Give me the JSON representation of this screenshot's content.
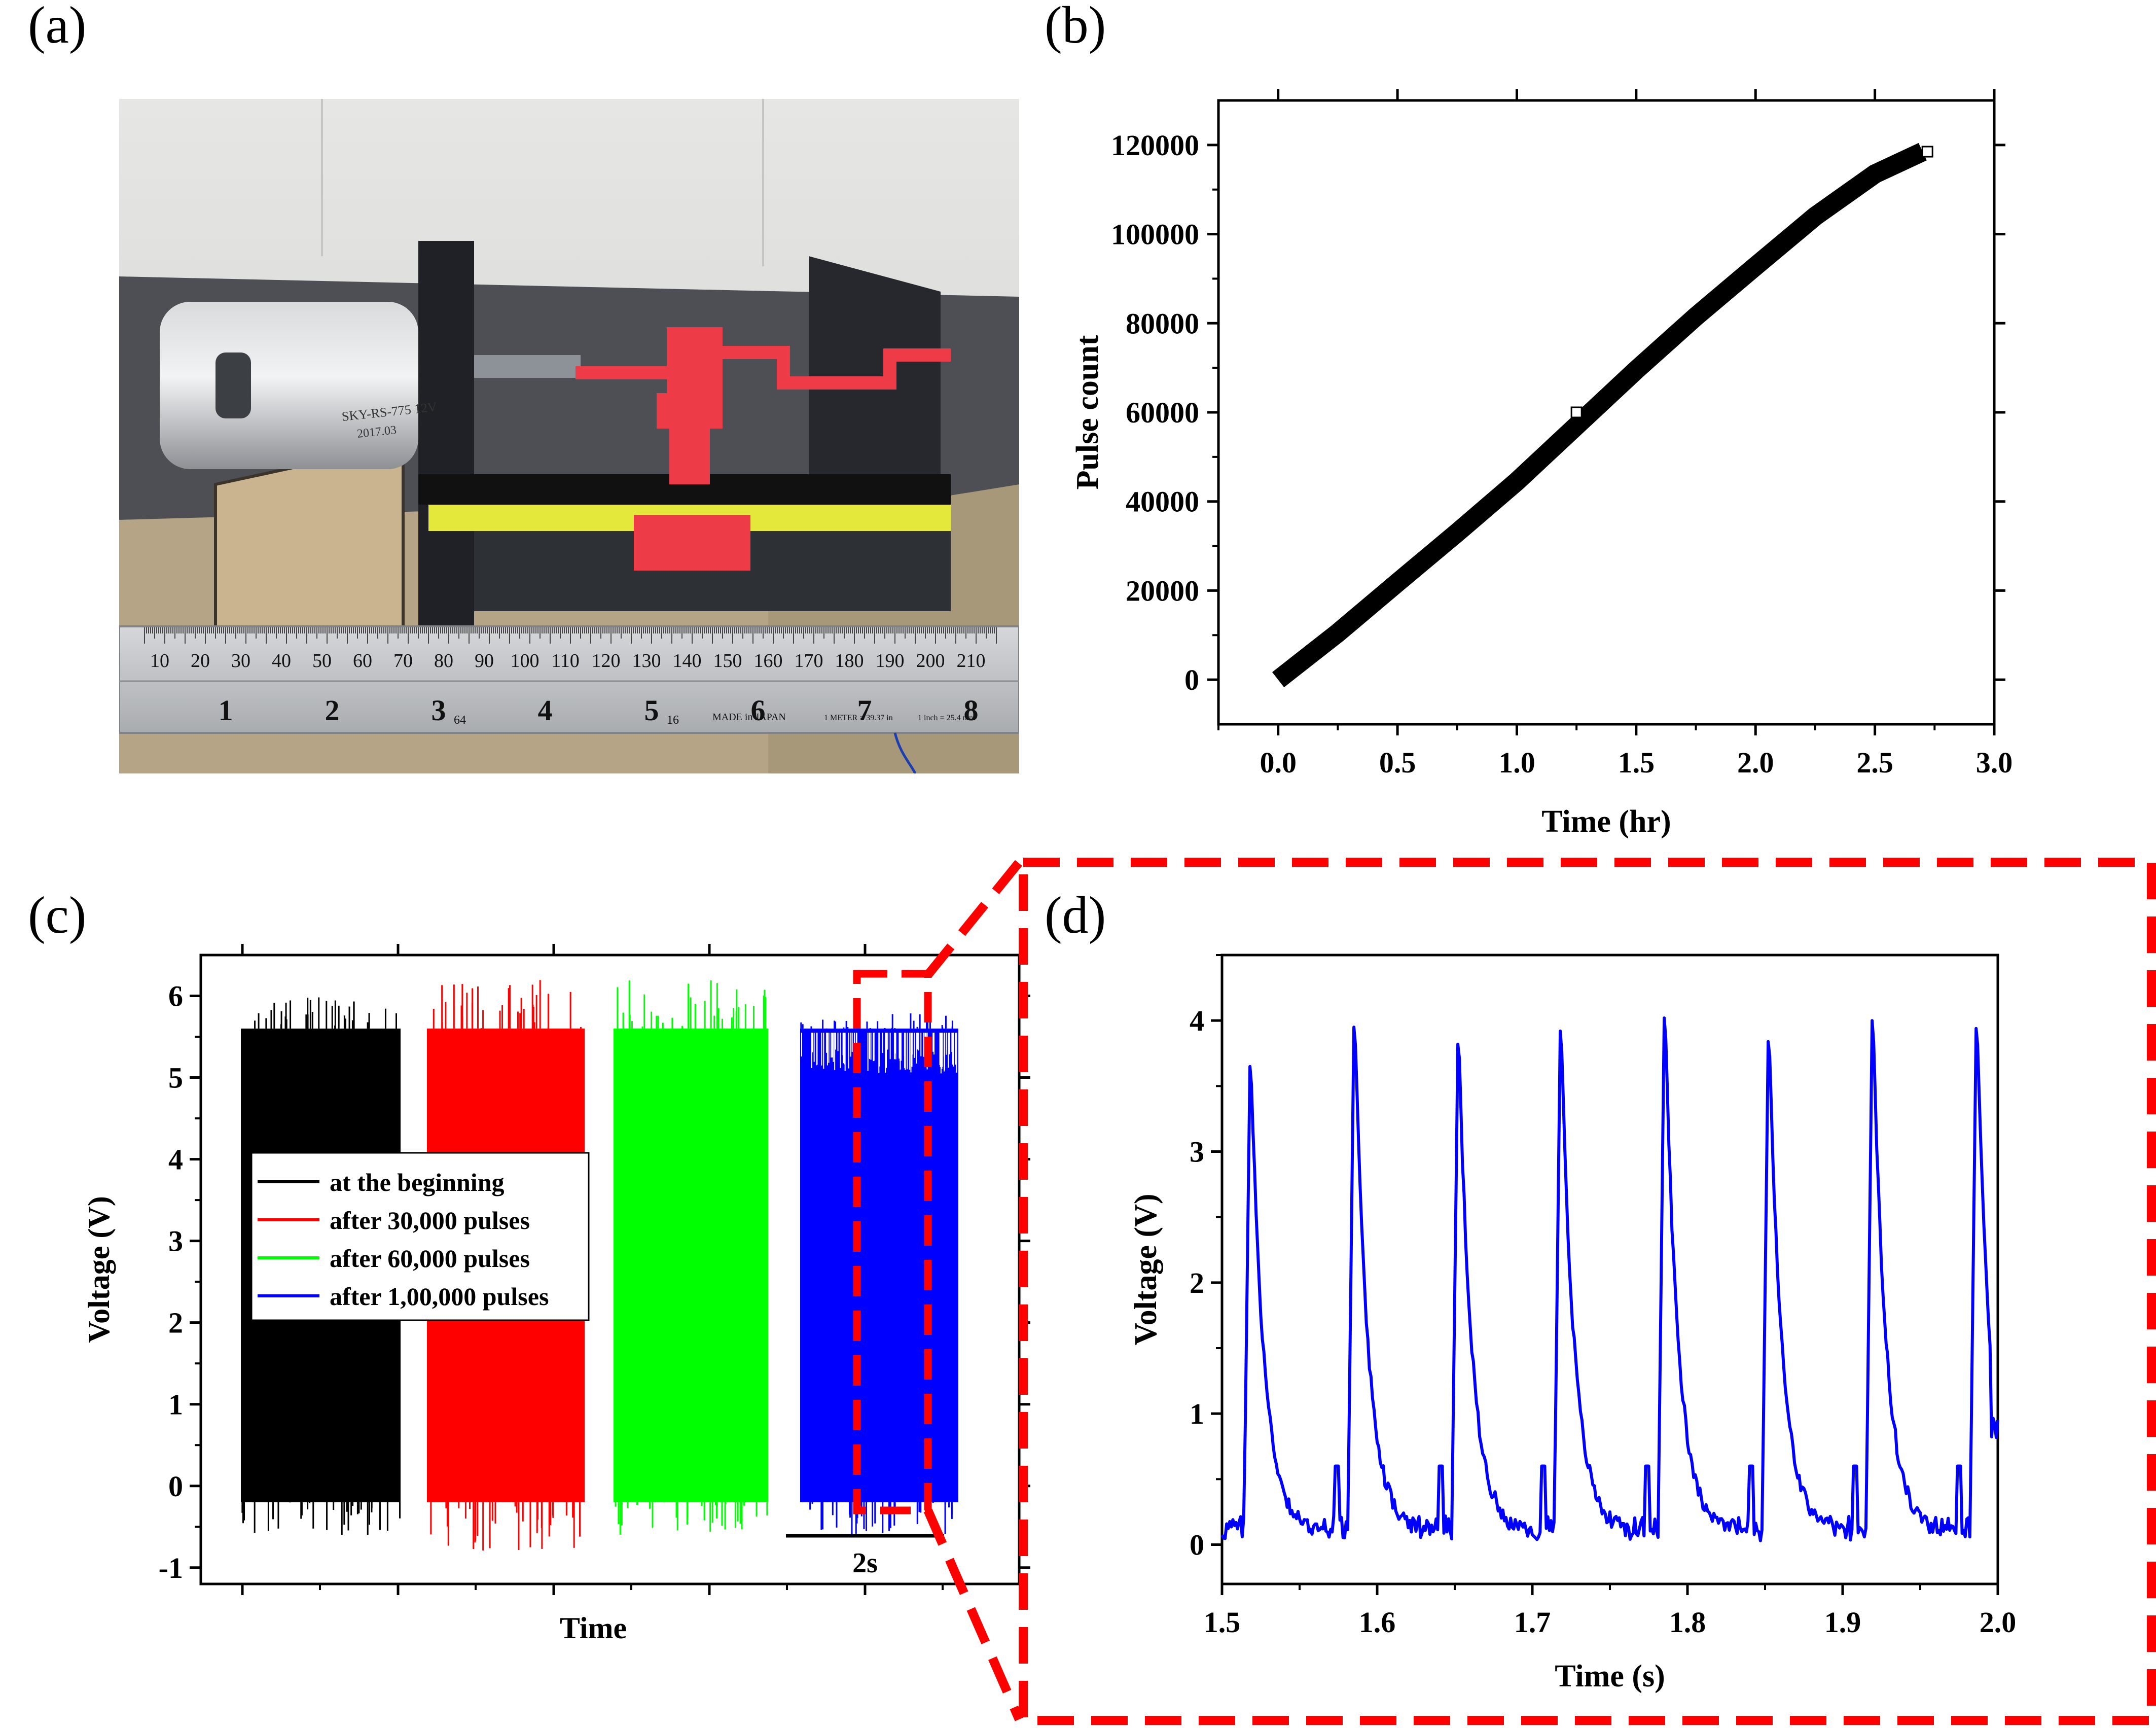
{
  "panel_labels": {
    "a": "(a)",
    "b": "(b)",
    "c": "(c)",
    "d": "(d)"
  },
  "photo": {
    "ruler_cm_labels": [
      "10",
      "20",
      "30",
      "40",
      "50",
      "60",
      "70",
      "80",
      "90",
      "100",
      "110",
      "120",
      "130",
      "140",
      "150",
      "160",
      "170",
      "180",
      "190",
      "200",
      "210"
    ],
    "ruler_inch_labels": [
      "1",
      "2",
      "3",
      "4",
      "5",
      "6",
      "7",
      "8"
    ],
    "ruler_small_labels": [
      "64",
      "16"
    ],
    "ruler_made": "MADE in JAPAN",
    "ruler_meter": "1 METER = 39.37 in",
    "ruler_inch": "1 inch = 25.4 mm",
    "motor_text_1": "SKY-RS-775 12V",
    "motor_text_2": "2017.03"
  },
  "colors": {
    "black": "#000000",
    "red": "#ff0000",
    "green": "#00ff00",
    "blue": "#0000ff",
    "dash": "#ff0000"
  },
  "chart_data": [
    {
      "panel": "b",
      "type": "line",
      "xlabel": "Time (hr)",
      "ylabel": "Pulse count",
      "xlim": [
        -0.25,
        3.0
      ],
      "ylim": [
        -10000,
        130000
      ],
      "xticks": [
        0.0,
        0.5,
        1.0,
        1.5,
        2.0,
        2.5,
        3.0
      ],
      "xtick_labels": [
        "0.0",
        "0.5",
        "1.0",
        "1.5",
        "2.0",
        "2.5",
        "3.0"
      ],
      "yticks": [
        0,
        20000,
        40000,
        60000,
        80000,
        100000,
        120000
      ],
      "ytick_labels": [
        "0",
        "20000",
        "40000",
        "60000",
        "80000",
        "100000",
        "120000"
      ],
      "series": [
        {
          "x": [
            0,
            0.25,
            0.5,
            0.75,
            1.0,
            1.25,
            1.5,
            1.75,
            2.0,
            2.25,
            2.5,
            2.7
          ],
          "y": [
            0,
            10500,
            21800,
            33000,
            44500,
            57000,
            69500,
            81500,
            92800,
            104000,
            113500,
            118500
          ]
        }
      ],
      "markers": [
        {
          "x": 1.25,
          "y": 60000
        },
        {
          "x": 2.72,
          "y": 118500
        }
      ]
    },
    {
      "panel": "c",
      "type": "line",
      "xlabel": "Time",
      "ylabel": "Voltage (V)",
      "ylim": [
        -1.2,
        6.5
      ],
      "yticks": [
        -1,
        0,
        1,
        2,
        3,
        4,
        5,
        6
      ],
      "ytick_labels": [
        "-1",
        "0",
        "1",
        "2",
        "3",
        "4",
        "5",
        "6"
      ],
      "scalebar_label": "2s",
      "legend_position": "center-left",
      "series": [
        {
          "name": "at the beginning",
          "low": -0.2,
          "high": 5.6,
          "max": 6.0,
          "min": -0.6
        },
        {
          "name": "after 30,000 pulses",
          "low": -0.2,
          "high": 5.6,
          "max": 6.2,
          "min": -0.8
        },
        {
          "name": "after 60,000 pulses",
          "low": -0.2,
          "high": 5.6,
          "max": 6.2,
          "min": -0.6
        },
        {
          "name": "after 1,00,000 pulses",
          "low": -0.2,
          "high": 5.6,
          "max": 5.8,
          "min": -0.6
        }
      ]
    },
    {
      "panel": "d",
      "type": "line",
      "xlabel": "Time (s)",
      "ylabel": "Voltage (V)",
      "xlim": [
        1.5,
        2.0
      ],
      "ylim": [
        -0.3,
        4.5
      ],
      "xticks": [
        1.5,
        1.6,
        1.7,
        1.8,
        1.9,
        2.0
      ],
      "xtick_labels": [
        "1.5",
        "1.6",
        "1.7",
        "1.8",
        "1.9",
        "2.0"
      ],
      "yticks": [
        0,
        1,
        2,
        3,
        4
      ],
      "ytick_labels": [
        "0",
        "1",
        "2",
        "3",
        "4"
      ],
      "series": [
        {
          "name": "after 1,00,000 pulses",
          "peak_times": [
            1.518,
            1.585,
            1.652,
            1.718,
            1.785,
            1.852,
            1.919,
            1.986
          ],
          "peak_values": [
            3.65,
            3.95,
            3.82,
            3.92,
            4.02,
            3.84,
            4.0,
            3.94
          ]
        }
      ]
    }
  ]
}
